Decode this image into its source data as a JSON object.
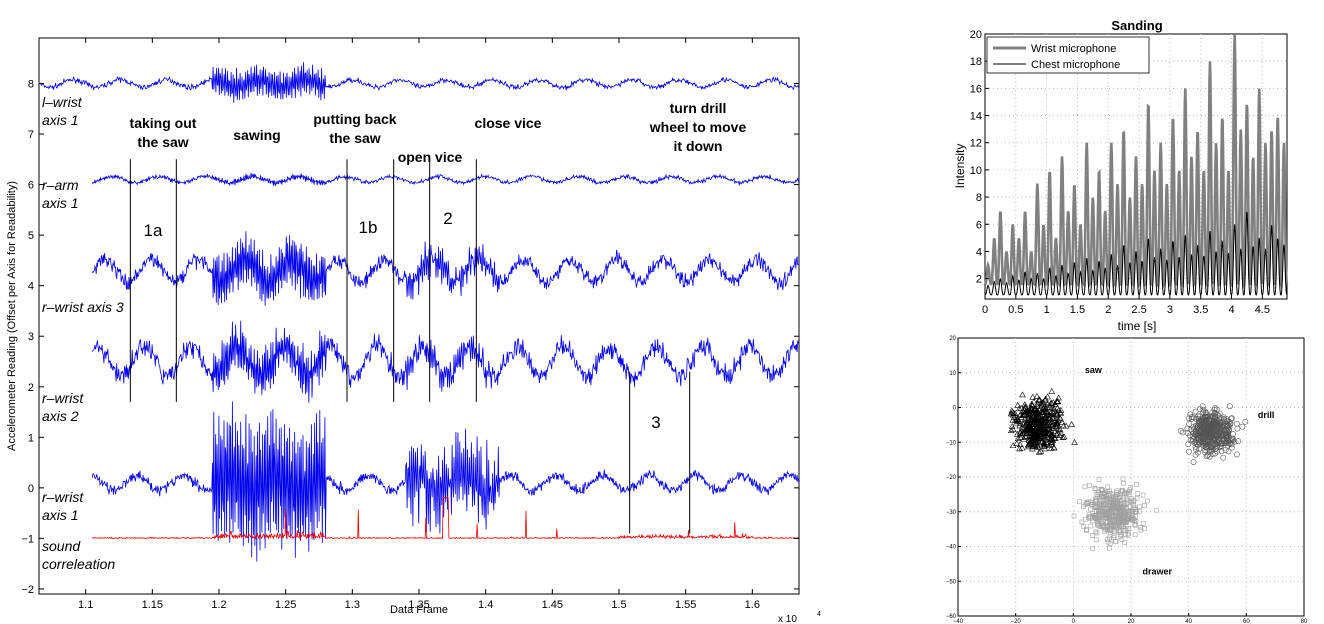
{
  "chart_data": [
    {
      "type": "line",
      "xlabel": "Data Frame",
      "ylabel": "Accelerometer Reading (Offset per Axis for Readability)",
      "x_multiplier": "x 10",
      "x_multiplier_exp": "4",
      "xlim": [
        1.065,
        1.635
      ],
      "ylim": [
        -2.1,
        8.9
      ],
      "xticks": [
        1.1,
        1.15,
        1.2,
        1.25,
        1.3,
        1.35,
        1.4,
        1.45,
        1.5,
        1.55,
        1.6
      ],
      "xtick_labels": [
        "1.1",
        "1.15",
        "1.2",
        "1.25",
        "1.3",
        "1.35",
        "1.4",
        "1.45",
        "1.5",
        "1.55",
        "1.6"
      ],
      "yticks": [
        -2,
        -1,
        0,
        1,
        2,
        3,
        4,
        5,
        6,
        7,
        8
      ],
      "ytick_labels": [
        "−2",
        "−1",
        "0",
        "1",
        "2",
        "3",
        "4",
        "5",
        "6",
        "7",
        "8"
      ],
      "series": [
        {
          "name": "l–wrist axis 1",
          "name_lines": [
            "l–wrist",
            "axis 1"
          ],
          "color": "#0000ee",
          "baseline": 8.0
        },
        {
          "name": "r–arm axis 1",
          "name_lines": [
            "r–arm",
            "axis 1"
          ],
          "color": "#0000ee",
          "baseline": 6.1
        },
        {
          "name": "r–wrist axis 3",
          "name_lines": [
            "r–wrist axis 3"
          ],
          "color": "#0000ee",
          "baseline": 4.3
        },
        {
          "name": "r–wrist axis 2",
          "name_lines": [
            "r–wrist",
            "axis 2"
          ],
          "color": "#0000ee",
          "baseline": 2.5
        },
        {
          "name": "r–wrist axis 1",
          "name_lines": [
            "r–wrist",
            "axis 1"
          ],
          "color": "#0000ee",
          "baseline": 0.1
        },
        {
          "name": "sound correleation",
          "name_lines": [
            "sound",
            "correleation"
          ],
          "color": "#ee0000",
          "baseline": -1.0
        }
      ],
      "activities": [
        {
          "lines": [
            "taking out",
            "the saw"
          ]
        },
        {
          "lines": [
            "sawing"
          ]
        },
        {
          "lines": [
            "putting back",
            "the saw"
          ]
        },
        {
          "lines": [
            "open vice"
          ]
        },
        {
          "lines": [
            "close vice"
          ]
        },
        {
          "lines": [
            "turn drill",
            "wheel to move",
            " it down"
          ]
        }
      ],
      "segment_labels": [
        "1a",
        "1b",
        "2",
        "3"
      ],
      "segment_boundaries": [
        1.1335,
        1.168,
        1.296,
        1.331,
        1.358,
        1.393,
        1.508,
        1.553
      ]
    },
    {
      "type": "line",
      "title": "Sanding",
      "xlabel": "time [s]",
      "ylabel": "Intensity",
      "xlim": [
        0,
        4.9
      ],
      "ylim": [
        0.5,
        20
      ],
      "xticks": [
        0,
        0.5,
        1,
        1.5,
        2,
        2.5,
        3,
        3.5,
        4,
        4.5
      ],
      "xtick_labels": [
        "0",
        "0.5",
        "1",
        "1.5",
        "2",
        "2.5",
        "3",
        "3.5",
        "4",
        "4.5"
      ],
      "yticks": [
        2,
        4,
        6,
        8,
        10,
        12,
        14,
        16,
        18,
        20
      ],
      "ytick_labels": [
        "2",
        "4",
        "6",
        "8",
        "10",
        "12",
        "14",
        "16",
        "18",
        "20"
      ],
      "grid": true,
      "legend": "top-left",
      "series": [
        {
          "name": "Wrist microphone",
          "color": "#808080",
          "peaks": [
            3,
            5,
            7,
            4,
            6,
            5,
            7,
            4,
            9,
            6,
            10,
            5,
            11,
            7,
            9,
            6,
            12,
            8,
            10,
            7,
            12,
            9,
            13,
            8,
            11,
            9,
            15,
            10,
            12,
            9,
            14,
            10,
            16,
            11,
            13,
            10,
            18,
            12,
            14,
            10,
            20,
            13,
            15,
            11,
            16,
            12,
            13,
            14,
            12
          ]
        },
        {
          "name": "Chest microphone",
          "color": "#000000",
          "peaks": [
            1.5,
            1.8,
            2,
            1.7,
            2.2,
            1.9,
            2.5,
            2,
            2.4,
            2,
            2.8,
            2.2,
            3,
            2.4,
            3.2,
            2.5,
            3.5,
            2.6,
            3.3,
            2.8,
            3.8,
            3,
            4.5,
            3.2,
            4,
            3.3,
            5,
            3.6,
            4.2,
            3.4,
            4.8,
            3.6,
            5.2,
            3.8,
            4.5,
            3.7,
            5.5,
            4,
            4.8,
            3.9,
            6,
            4.2,
            7,
            4.4,
            5,
            4.2,
            6,
            5,
            4.5
          ]
        }
      ]
    },
    {
      "type": "scatter",
      "xlim": [
        -40,
        80
      ],
      "ylim": [
        -60,
        20
      ],
      "xticks": [
        -40,
        -20,
        0,
        20,
        40,
        60,
        80
      ],
      "xtick_labels": [
        "−40",
        "−20",
        "0",
        "20",
        "40",
        "60",
        "80"
      ],
      "yticks": [
        -60,
        -50,
        -40,
        -30,
        -20,
        -10,
        0,
        10,
        20
      ],
      "ytick_labels": [
        "−60",
        "−50",
        "−40",
        "−30",
        "−20",
        "−10",
        "0",
        "10",
        "20"
      ],
      "grid": true,
      "clusters": [
        {
          "label": "saw",
          "label_pos": [
            4,
            10
          ],
          "marker": "triangle",
          "color": "#000000",
          "center": [
            -12,
            -5
          ],
          "spread": [
            8,
            7
          ]
        },
        {
          "label": "drill",
          "label_pos": [
            64,
            -3
          ],
          "marker": "circle",
          "color": "#555555",
          "center": [
            48,
            -7
          ],
          "spread": [
            8,
            6
          ]
        },
        {
          "label": "drawer",
          "label_pos": [
            24,
            -48
          ],
          "marker": "square",
          "color": "#a0a0a0",
          "center": [
            14,
            -30
          ],
          "spread": [
            9,
            7
          ]
        }
      ]
    }
  ]
}
